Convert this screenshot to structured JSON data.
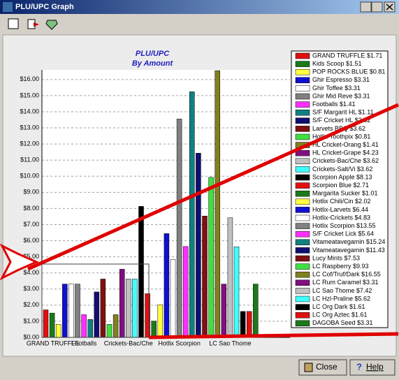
{
  "window": {
    "title": "PLU/UPC Graph",
    "buttons": [
      "Close",
      "Help"
    ]
  },
  "chart_data": {
    "type": "bar",
    "title": "PLU/UPC",
    "subtitle": "By Amount",
    "categories": [
      "GRAND TRUFFLE",
      null,
      null,
      null,
      null,
      null,
      "Footballs",
      null,
      null,
      null,
      null,
      null,
      null,
      "Crickets-Bac/Che",
      null,
      null,
      null,
      null,
      null,
      null,
      null,
      "Hotlix Scorpion",
      null,
      null,
      null,
      null,
      null,
      null,
      null,
      "LC Sao Thome",
      null,
      null,
      null,
      null
    ],
    "values": [
      1.71,
      1.51,
      0.81,
      3.31,
      3.31,
      3.31,
      1.41,
      1.11,
      2.82,
      3.62,
      0.81,
      1.41,
      4.23,
      3.62,
      3.62,
      8.13,
      2.71,
      1.01,
      2.02,
      6.44,
      4.83,
      13.55,
      5.64,
      15.24,
      11.43,
      7.53,
      9.93,
      16.55,
      3.31,
      7.42,
      5.62,
      1.61,
      1.61,
      3.31
    ],
    "colors": [
      "#e01010",
      "#1a7a1a",
      "#ffff40",
      "#1010d0",
      "#ffffff",
      "#808080",
      "#ff30ff",
      "#108080",
      "#101070",
      "#801010",
      "#40e040",
      "#808020",
      "#801080",
      "#c0c0c0",
      "#40ffff",
      "#000000",
      "#e01010",
      "#1a7a1a",
      "#ffff40",
      "#1010d0",
      "#ffffff",
      "#808080",
      "#ff30ff",
      "#108080",
      "#101070",
      "#801010",
      "#40e040",
      "#808020",
      "#801080",
      "#c0c0c0",
      "#40ffff",
      "#000000",
      "#e01010",
      "#1a7a1a"
    ],
    "legend_labels": [
      "GRAND TRUFFLE $1.71",
      "Kids Scoop $1.51",
      "POP ROCKS BLUE $0.81",
      "Ghir Espresso $3.31",
      "Ghir Toffee $3.31",
      "Ghir Mid Reve $3.31",
      "Footballs $1.41",
      "S/F Margarit HL $1.11",
      "S/F Cricket HL $2.82",
      "Larvets BBQ $3.62",
      "Hotlix Toothpix $0.81",
      "HL Cricket-Orang $1.41",
      "HL Cricket-Grape $4.23",
      "Crickets-Bac/Che $3.62",
      "Crickets-Salt/Vi $3.62",
      "Scorpion Apple $8.13",
      "Scorpion Blue $2.71",
      "Margarita Sucker $1.01",
      "Hotlix Chili/Cin $2.02",
      "Hotlix-Larvets $6.44",
      "Hotlix-Crickets $4.83",
      "Hotlix Scorpion $13.55",
      "S/F Cricket Lick $5.64",
      "Vitameatavegamin $15.24",
      "Vitameatavegamin $11.43",
      "Lucy Mints $7.53",
      "LC Raspberry $9.93",
      "LC Cof/Truf/Dark $16.55",
      "LC Rum Caramel $3.31",
      "LC Sao Thome $7.42",
      "LC Hzl-Praline $5.62",
      "LC Org Dark $1.61",
      "LC Org Aztec $1.61",
      "DAGOBA Seed $3.31"
    ],
    "ylim": [
      0,
      16.6
    ],
    "yticks": [
      {
        "value": 0,
        "label": "$0.00"
      },
      {
        "value": 1,
        "label": "$1.00"
      },
      {
        "value": 2,
        "label": "$2.00"
      },
      {
        "value": 3,
        "label": "$3.00"
      },
      {
        "value": 4,
        "label": "$4.00"
      },
      {
        "value": 5,
        "label": "$5.00"
      },
      {
        "value": 6,
        "label": "$6.00"
      },
      {
        "value": 7,
        "label": "$7.00"
      },
      {
        "value": 8,
        "label": "$8.00"
      },
      {
        "value": 9,
        "label": "$9.00"
      },
      {
        "value": 10,
        "label": "$10.00"
      },
      {
        "value": 11,
        "label": "$11.00"
      },
      {
        "value": 12,
        "label": "$12.00"
      },
      {
        "value": 13,
        "label": "$13.00"
      },
      {
        "value": 14,
        "label": "$14.00"
      },
      {
        "value": 15,
        "label": "$15.00"
      },
      {
        "value": 16,
        "label": "$16.00"
      }
    ],
    "grid": true
  }
}
